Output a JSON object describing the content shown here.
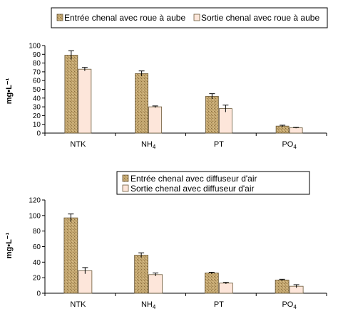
{
  "colors": {
    "entree": "#c3a66f",
    "entree_texture": "#8a6e3e",
    "sortie": "#fde6da"
  },
  "chart_data": [
    {
      "type": "bar",
      "categories": [
        "NTK",
        "NH4",
        "PT",
        "PO4"
      ],
      "category_labels": [
        {
          "main": "NTK",
          "sub": ""
        },
        {
          "main": "NH",
          "sub": "4"
        },
        {
          "main": "PT",
          "sub": ""
        },
        {
          "main": "PO",
          "sub": "4"
        }
      ],
      "ylabel": "mg•L⁻¹",
      "ylim": [
        0,
        100
      ],
      "yticks": [
        0,
        10,
        20,
        30,
        40,
        50,
        60,
        70,
        80,
        90,
        100
      ],
      "legend": "top",
      "series": [
        {
          "name": "Entrée chenal avec roue à aube",
          "values": [
            89,
            68,
            42,
            8
          ],
          "errors": [
            5,
            3,
            3,
            1
          ]
        },
        {
          "name": "Sortie chenal avec roue à aube",
          "values": [
            73,
            30,
            28,
            6
          ],
          "errors": [
            2,
            1,
            4,
            0.5
          ]
        }
      ]
    },
    {
      "type": "bar",
      "categories": [
        "NTK",
        "NH4",
        "PT",
        "PO4"
      ],
      "category_labels": [
        {
          "main": "NTK",
          "sub": ""
        },
        {
          "main": "NH",
          "sub": "4"
        },
        {
          "main": "PT",
          "sub": ""
        },
        {
          "main": "PO",
          "sub": "4"
        }
      ],
      "ylabel": "mg•L⁻¹",
      "ylim": [
        0,
        120
      ],
      "yticks": [
        0,
        20,
        40,
        60,
        80,
        100,
        120
      ],
      "legend": "top",
      "series": [
        {
          "name": "Entrée chenal avec diffuseur d'air",
          "values": [
            97,
            49,
            26,
            17
          ],
          "errors": [
            5,
            3,
            1,
            1
          ]
        },
        {
          "name": "Sortie chenal avec diffuseur d'air",
          "values": [
            29,
            24,
            13,
            9
          ],
          "errors": [
            4,
            2,
            1,
            2
          ]
        }
      ]
    }
  ]
}
